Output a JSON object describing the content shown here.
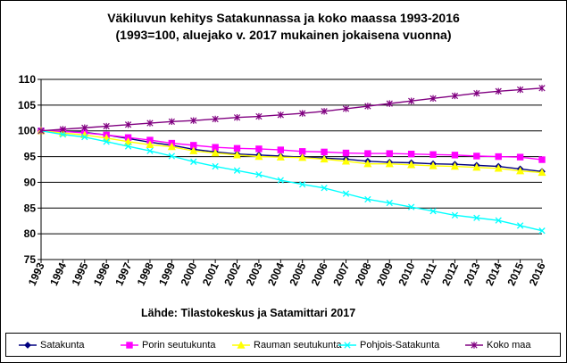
{
  "title_line1": "Väkiluvun kehitys Satakunnassa ja koko maassa 1993-2016",
  "title_line2": "(1993=100, aluejako v. 2017 mukainen jokaisena vuonna)",
  "source": "Lähde: Tilastokeskus ja Satamittari 2017",
  "chart_data": {
    "type": "line",
    "title": "Väkiluvun kehitys Satakunnassa ja koko maassa 1993-2016",
    "subtitle": "(1993=100, aluejako v. 2017 mukainen jokaisena vuonna)",
    "x": [
      "1993",
      "1994",
      "1995",
      "1996",
      "1997",
      "1998",
      "1999",
      "2000",
      "2001",
      "2002",
      "2003",
      "2004",
      "2005",
      "2006",
      "2007",
      "2008",
      "2009",
      "2010",
      "2011",
      "2012",
      "2013",
      "2014",
      "2015",
      "2016"
    ],
    "ylim": [
      75,
      110
    ],
    "yticks": [
      75,
      80,
      85,
      90,
      95,
      100,
      105,
      110
    ],
    "grid": true,
    "legend_position": "bottom",
    "series": [
      {
        "name": "Satakunta",
        "color": "#000080",
        "marker": "diamond",
        "values": [
          100,
          99.9,
          99.7,
          99.2,
          98.5,
          97.8,
          97.2,
          96.4,
          95.9,
          95.5,
          95.3,
          95.1,
          94.9,
          94.7,
          94.5,
          94.1,
          93.9,
          93.8,
          93.6,
          93.5,
          93.3,
          93.1,
          92.6,
          92.1
        ]
      },
      {
        "name": "Porin seutukunta",
        "color": "#ff00ff",
        "marker": "square",
        "values": [
          100,
          99.9,
          99.6,
          99.2,
          98.7,
          98.2,
          97.6,
          97.2,
          96.8,
          96.6,
          96.5,
          96.3,
          96.0,
          95.9,
          95.7,
          95.6,
          95.6,
          95.5,
          95.4,
          95.3,
          95.1,
          95.0,
          94.9,
          94.4
        ]
      },
      {
        "name": "Rauman seutukunta",
        "color": "#ffff00",
        "marker": "triangle",
        "values": [
          100,
          99.6,
          99.2,
          98.6,
          97.9,
          97.3,
          96.9,
          96.1,
          95.7,
          95.3,
          95.0,
          94.9,
          94.8,
          94.5,
          94.1,
          93.6,
          93.6,
          93.4,
          93.2,
          93.1,
          92.9,
          92.7,
          92.2,
          91.9
        ]
      },
      {
        "name": "Pohjois-Satakunta",
        "color": "#00ffff",
        "marker": "x",
        "values": [
          100,
          99.3,
          98.8,
          97.9,
          97.0,
          96.1,
          95.1,
          94.0,
          93.1,
          92.3,
          91.5,
          90.4,
          89.6,
          88.9,
          87.8,
          86.7,
          86.0,
          85.2,
          84.4,
          83.6,
          83.1,
          82.6,
          81.6,
          80.6
        ]
      },
      {
        "name": "Koko maa",
        "color": "#800080",
        "marker": "star",
        "values": [
          100,
          100.3,
          100.6,
          100.9,
          101.2,
          101.5,
          101.8,
          102.0,
          102.3,
          102.6,
          102.8,
          103.1,
          103.4,
          103.8,
          104.3,
          104.8,
          105.3,
          105.8,
          106.3,
          106.8,
          107.3,
          107.7,
          108.0,
          108.3
        ]
      }
    ]
  }
}
